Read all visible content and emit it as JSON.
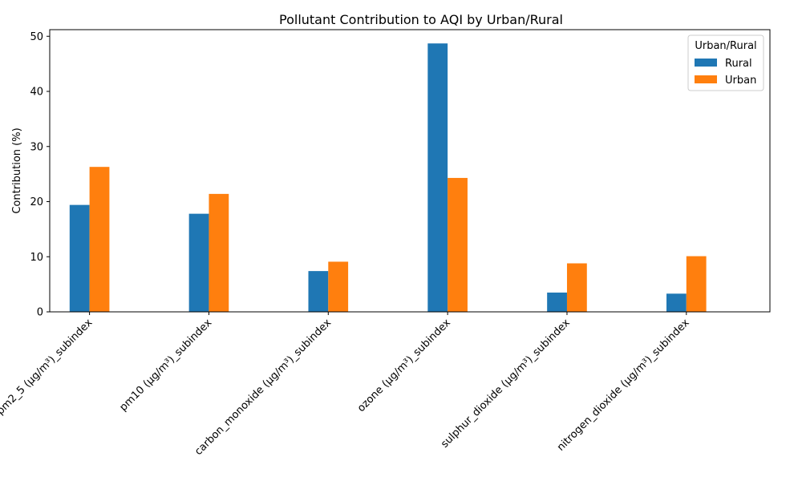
{
  "chart_data": {
    "type": "bar",
    "title": "Pollutant Contribution to AQI by Urban/Rural",
    "xlabel": "",
    "ylabel": "Contribution (%)",
    "ylim": [
      0,
      51.2
    ],
    "yticks": [
      0,
      10,
      20,
      30,
      40,
      50
    ],
    "categories": [
      "pm2_5 (µg/m³)_subindex",
      "pm10 (µg/m³)_subindex",
      "carbon_monoxide (µg/m³)_subindex",
      "ozone (µg/m³)_subindex",
      "sulphur_dioxide (µg/m³)_subindex",
      "nitrogen_dioxide (µg/m³)_subindex"
    ],
    "series": [
      {
        "name": "Rural",
        "color": "#1f77b4",
        "values": [
          19.4,
          17.8,
          7.4,
          48.7,
          3.5,
          3.3
        ]
      },
      {
        "name": "Urban",
        "color": "#ff7f0e",
        "values": [
          26.3,
          21.4,
          9.1,
          24.3,
          8.8,
          10.1
        ]
      }
    ],
    "legend": {
      "title": "Urban/Rural",
      "placement": "top-right"
    },
    "grid": false
  }
}
